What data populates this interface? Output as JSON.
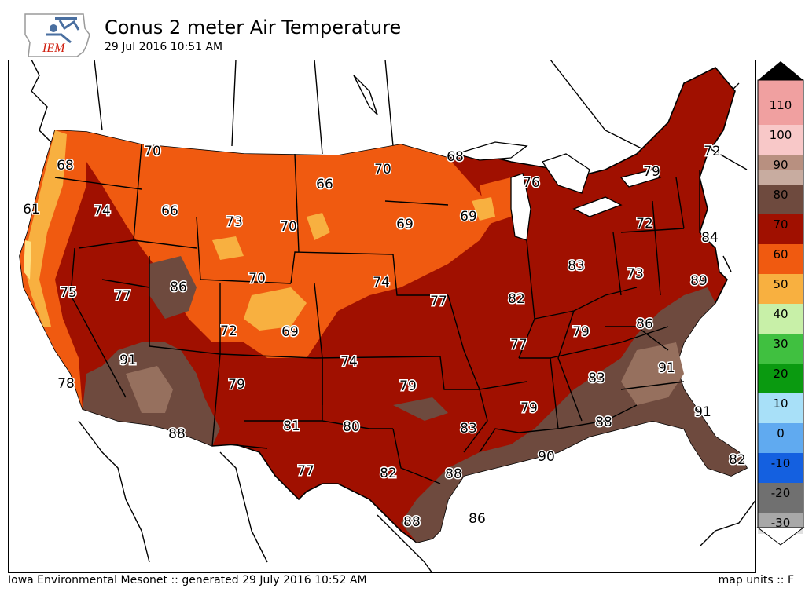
{
  "header": {
    "title": "Conus 2 meter Air Temperature",
    "subtitle": "29 Jul 2016 10:51 AM",
    "logo_text": "IEM"
  },
  "footer": {
    "left": "Iowa Environmental Mesonet :: generated 29 July 2016 10:52 AM",
    "right": "map units :: F"
  },
  "legend": {
    "labels": [
      "110",
      "100",
      "90",
      "80",
      "70",
      "60",
      "50",
      "40",
      "30",
      "20",
      "10",
      "0",
      "-10",
      "-20",
      "-30"
    ],
    "colors": {
      "c110": "#f0a0a0",
      "c105": "#f8c8c8",
      "c95": "#c8aca0",
      "c85": "#6e4a3e",
      "c75": "#a01000",
      "c65": "#f05a10",
      "c55": "#f8b040",
      "c45": "#c8f0a8",
      "c35": "#40c040",
      "c25": "#0a9a10",
      "c15": "#a8e0f8",
      "c5": "#60aaf0",
      "c_5": "#1460e0",
      "c_15": "#707070",
      "c_25": "#a8a8a8",
      "c_35": "#e0e0e0",
      "top": "#000000",
      "bottom": "#ffffff"
    }
  },
  "stations": [
    {
      "value": "68"
    },
    {
      "value": "70"
    },
    {
      "value": "61"
    },
    {
      "value": "74"
    },
    {
      "value": "66"
    },
    {
      "value": "73"
    },
    {
      "value": "70"
    },
    {
      "value": "66"
    },
    {
      "value": "70"
    },
    {
      "value": "68"
    },
    {
      "value": "76"
    },
    {
      "value": "69"
    },
    {
      "value": "69"
    },
    {
      "value": "79"
    },
    {
      "value": "72"
    },
    {
      "value": "72"
    },
    {
      "value": "84"
    },
    {
      "value": "75"
    },
    {
      "value": "77"
    },
    {
      "value": "86"
    },
    {
      "value": "70"
    },
    {
      "value": "74"
    },
    {
      "value": "77"
    },
    {
      "value": "82"
    },
    {
      "value": "83"
    },
    {
      "value": "73"
    },
    {
      "value": "89"
    },
    {
      "value": "91"
    },
    {
      "value": "72"
    },
    {
      "value": "69"
    },
    {
      "value": "74"
    },
    {
      "value": "77"
    },
    {
      "value": "79"
    },
    {
      "value": "86"
    },
    {
      "value": "78"
    },
    {
      "value": "79"
    },
    {
      "value": "79"
    },
    {
      "value": "83"
    },
    {
      "value": "91"
    },
    {
      "value": "88"
    },
    {
      "value": "81"
    },
    {
      "value": "80"
    },
    {
      "value": "83"
    },
    {
      "value": "79"
    },
    {
      "value": "88"
    },
    {
      "value": "91"
    },
    {
      "value": "90"
    },
    {
      "value": "82"
    },
    {
      "value": "77"
    },
    {
      "value": "82"
    },
    {
      "value": "88"
    },
    {
      "value": "88"
    }
  ],
  "gulf_station": {
    "value": "86"
  },
  "colors": {
    "land": "#a01000",
    "hot": "#6e4a3e",
    "hottest": "#96705e",
    "warm": "#f05a10",
    "mild": "#f8b040",
    "cool": "#ffe080",
    "border": "#000000"
  }
}
